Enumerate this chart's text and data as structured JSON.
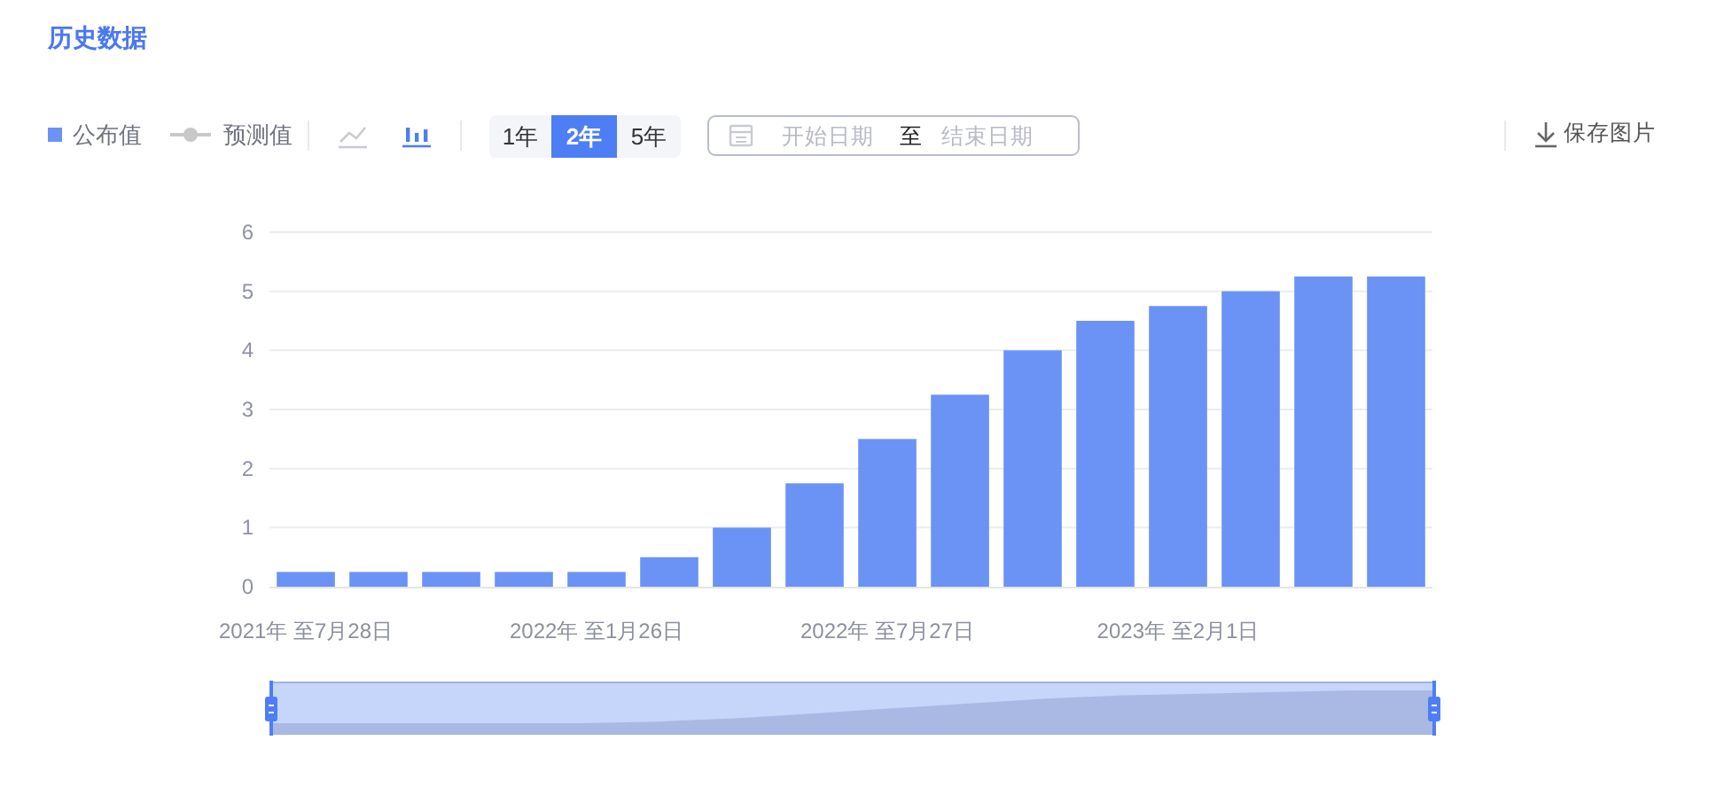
{
  "chart_data": {
    "type": "bar",
    "title": "历史数据",
    "categories": [
      "2021年 至7月28日",
      null,
      null,
      null,
      "2022年 至1月26日",
      null,
      null,
      null,
      "2022年 至7月27日",
      null,
      null,
      null,
      "2023年 至2月1日",
      null,
      null,
      null
    ],
    "series": [
      {
        "name": "公布值",
        "color": "#6b92f5",
        "values": [
          0.25,
          0.25,
          0.25,
          0.25,
          0.25,
          0.5,
          1,
          1.75,
          2.5,
          3.25,
          4,
          4.5,
          4.75,
          5,
          5.25,
          5.25
        ]
      },
      {
        "name": "预测值",
        "type": "line",
        "color": "#c8c8c8",
        "values": [
          null,
          null,
          null,
          null,
          null,
          null,
          null,
          null,
          null,
          null,
          null,
          null,
          null,
          null,
          null,
          null
        ]
      }
    ],
    "marker": "circle",
    "ylim": [
      0,
      6
    ],
    "yticks": [
      0,
      1,
      2,
      3,
      4,
      5,
      6
    ],
    "grid": "y",
    "legend": "top left",
    "annotations": [
      "1年",
      "2年",
      "5年",
      "开始日期",
      "至",
      "结束日期",
      "保存图片"
    ]
  }
}
